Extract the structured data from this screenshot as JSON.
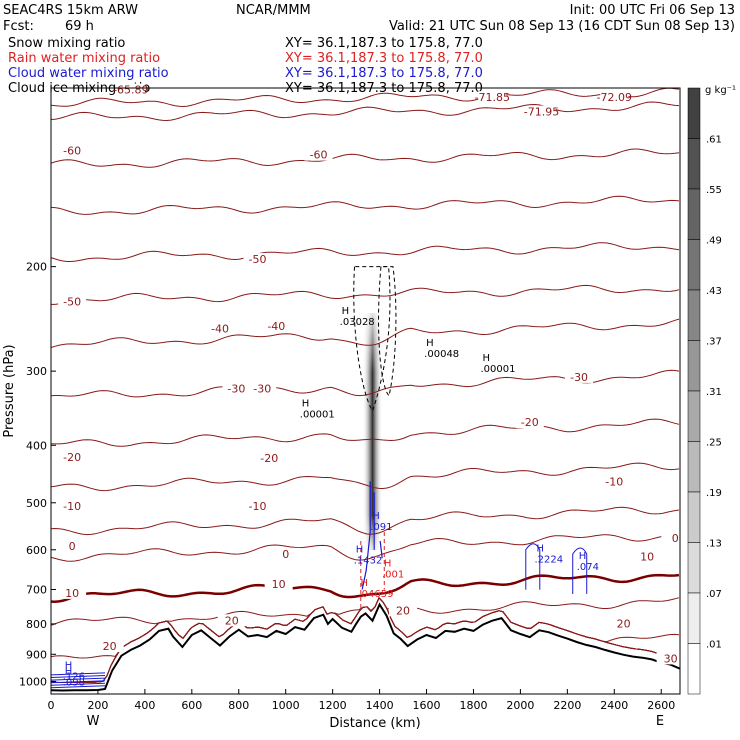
{
  "header": {
    "model": "SEAC4RS 15km ARW",
    "center": "NCAR/MMM",
    "init": "Init: 00 UTC Fri 06 Sep 13",
    "fcst_label": "Fcst:",
    "fcst_value": "69 h",
    "valid": "Valid: 21 UTC Sun 08 Sep 13 (16 CDT Sun 08 Sep 13)",
    "fields": [
      {
        "name": "Snow mixing ratio",
        "xy": "XY=  36.1,187.3 to 175.8, 77.0",
        "color": "#000000"
      },
      {
        "name": "Rain water mixing ratio",
        "xy": "XY=  36.1,187.3 to 175.8, 77.0",
        "color": "#e02020"
      },
      {
        "name": "Cloud water mixing ratio",
        "xy": "XY=  36.1,187.3 to 175.8, 77.0",
        "color": "#1a1ad0"
      },
      {
        "name": "Cloud ice mixing ratio",
        "xy": "XY=  36.1,187.3 to 175.8, 77.0",
        "color": "#000000"
      }
    ]
  },
  "chart_data": {
    "type": "cross-section",
    "xlabel": "Distance (km)",
    "ylabel": "Pressure (hPa)",
    "xlim": [
      0,
      2680
    ],
    "ylim": [
      1050,
      100
    ],
    "y_scale": "log",
    "x_ticks": [
      0,
      200,
      400,
      600,
      800,
      1000,
      1200,
      1400,
      1600,
      1800,
      2000,
      2200,
      2400,
      2600
    ],
    "y_ticks": [
      200,
      300,
      400,
      500,
      600,
      700,
      800,
      900,
      1000
    ],
    "endpoints": {
      "left": "W",
      "right": "E"
    },
    "temperature_contours_c": [
      -70,
      -60,
      -50,
      -40,
      -30,
      -20,
      -10,
      0,
      10,
      20,
      30
    ],
    "contour_labels": [
      {
        "text": "-60",
        "x": 90,
        "p": 128
      },
      {
        "text": "-60",
        "x": 1140,
        "p": 130
      },
      {
        "text": "-65.89",
        "x": 340,
        "p": 101
      },
      {
        "text": "-71.85",
        "x": 1880,
        "p": 104
      },
      {
        "text": "-71.95",
        "x": 2090,
        "p": 110
      },
      {
        "text": "-72.09",
        "x": 2400,
        "p": 104
      },
      {
        "text": "-50",
        "x": 90,
        "p": 230
      },
      {
        "text": "-50",
        "x": 880,
        "p": 195
      },
      {
        "text": "-40",
        "x": 720,
        "p": 255
      },
      {
        "text": "-40",
        "x": 960,
        "p": 253
      },
      {
        "text": "-30",
        "x": 790,
        "p": 322
      },
      {
        "text": "-30",
        "x": 900,
        "p": 322
      },
      {
        "text": "-30",
        "x": 2250,
        "p": 308
      },
      {
        "text": "-20",
        "x": 90,
        "p": 420
      },
      {
        "text": "-20",
        "x": 930,
        "p": 422
      },
      {
        "text": "-20",
        "x": 2040,
        "p": 367
      },
      {
        "text": "-10",
        "x": 90,
        "p": 508
      },
      {
        "text": "-10",
        "x": 880,
        "p": 508
      },
      {
        "text": "-10",
        "x": 2400,
        "p": 462
      },
      {
        "text": "0",
        "x": 90,
        "p": 593
      },
      {
        "text": "0",
        "x": 1000,
        "p": 612
      },
      {
        "text": "0",
        "x": 2660,
        "p": 575
      },
      {
        "text": "10",
        "x": 90,
        "p": 712
      },
      {
        "text": "10",
        "x": 970,
        "p": 688
      },
      {
        "text": "10",
        "x": 2540,
        "p": 618
      },
      {
        "text": "20",
        "x": 250,
        "p": 875
      },
      {
        "text": "20",
        "x": 770,
        "p": 792
      },
      {
        "text": "20",
        "x": 2440,
        "p": 802
      },
      {
        "text": "30",
        "x": 2640,
        "p": 918
      },
      {
        "text": "20",
        "x": 1500,
        "p": 762
      }
    ],
    "maxima": [
      {
        "label": ".03028",
        "x": 1230,
        "p": 250,
        "field": "Snow mixing ratio"
      },
      {
        "label": ".00048",
        "x": 1590,
        "p": 283,
        "field": "Snow mixing ratio"
      },
      {
        "label": ".00001",
        "x": 1830,
        "p": 300,
        "field": "Snow mixing ratio"
      },
      {
        "label": ".00001",
        "x": 1060,
        "p": 358,
        "field": "Snow mixing ratio"
      },
      {
        "label": ".091",
        "x": 1360,
        "p": 553,
        "field": "Cloud water mixing ratio"
      },
      {
        "label": ".1432",
        "x": 1290,
        "p": 630,
        "field": "Cloud water mixing ratio"
      },
      {
        "label": ".2224",
        "x": 2060,
        "p": 628,
        "field": "Cloud water mixing ratio"
      },
      {
        "label": ".074",
        "x": 2240,
        "p": 647,
        "field": "Cloud water mixing ratio"
      },
      {
        "label": ".001",
        "x": 1410,
        "p": 665,
        "field": "Rain water mixing ratio"
      },
      {
        "label": ".04659",
        "x": 1310,
        "p": 718,
        "field": "Rain water mixing ratio"
      },
      {
        "label": ".126",
        "x": 50,
        "p": 988,
        "field": "Cloud water mixing ratio"
      },
      {
        "label": ".098",
        "x": 50,
        "p": 1012,
        "field": "Cloud water mixing ratio"
      }
    ],
    "terrain": {
      "x": [
        0,
        50,
        100,
        150,
        200,
        230,
        260,
        300,
        340,
        380,
        420,
        460,
        500,
        520,
        560,
        600,
        640,
        680,
        720,
        760,
        800,
        840,
        880,
        920,
        960,
        1000,
        1040,
        1080,
        1120,
        1160,
        1180,
        1200,
        1240,
        1280,
        1300,
        1320,
        1340,
        1370,
        1400,
        1430,
        1460,
        1490,
        1520,
        1560,
        1600,
        1640,
        1680,
        1720,
        1760,
        1800,
        1840,
        1880,
        1920,
        1960,
        2000,
        2040,
        2080,
        2120,
        2160,
        2200,
        2240,
        2280,
        2320,
        2360,
        2400,
        2440,
        2480,
        2520,
        2560,
        2600,
        2640,
        2680
      ],
      "p": [
        1035,
        1036,
        1035,
        1035,
        1034,
        1030,
        960,
        905,
        885,
        870,
        850,
        822,
        815,
        840,
        875,
        835,
        820,
        845,
        870,
        840,
        818,
        840,
        835,
        842,
        822,
        832,
        810,
        818,
        782,
        772,
        800,
        785,
        812,
        825,
        800,
        778,
        768,
        790,
        742,
        775,
        830,
        848,
        872,
        850,
        835,
        845,
        822,
        825,
        815,
        822,
        802,
        790,
        782,
        820,
        832,
        842,
        820,
        826,
        837,
        847,
        858,
        868,
        875,
        885,
        894,
        902,
        908,
        912,
        918,
        930,
        937,
        952
      ]
    },
    "colorbar": {
      "unit": "g kg⁻¹",
      "labels": [
        ".01",
        ".07",
        ".13",
        ".19",
        ".25",
        ".31",
        ".37",
        ".43",
        ".49",
        ".55",
        ".61"
      ]
    }
  }
}
